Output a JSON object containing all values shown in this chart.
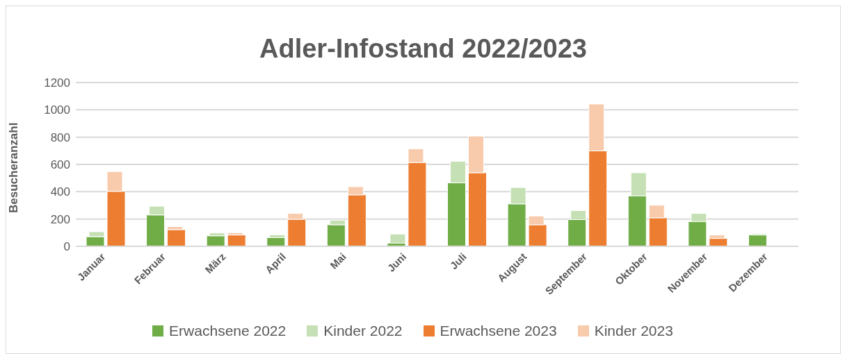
{
  "chart_data": {
    "type": "bar",
    "title": "Adler-Infostand 2022/2023",
    "ylabel": "Besucheranzahl",
    "categories": [
      "Januar",
      "Februar",
      "März",
      "April",
      "Mai",
      "Juni",
      "Juli",
      "August",
      "September",
      "Oktober",
      "November",
      "Dezember"
    ],
    "series": [
      {
        "name": "Erwachsene 2022",
        "color": "#70ad47",
        "values": [
          70,
          230,
          77,
          64,
          158,
          23,
          465,
          311,
          196,
          369,
          181,
          83
        ]
      },
      {
        "name": "Kinder 2022",
        "color": "#c5e0b4",
        "base": [
          70,
          230,
          77,
          64,
          158,
          23,
          465,
          311,
          196,
          369,
          181,
          83
        ],
        "values": [
          37,
          64,
          21,
          21,
          34,
          67,
          158,
          120,
          66,
          170,
          60,
          9
        ]
      },
      {
        "name": "Erwachsene 2023",
        "color": "#ed7d31",
        "values": [
          403,
          122,
          83,
          198,
          377,
          614,
          539,
          158,
          699,
          209,
          58,
          null
        ]
      },
      {
        "name": "Kinder 2023",
        "color": "#f8cbad",
        "base": [
          403,
          122,
          83,
          198,
          377,
          614,
          539,
          158,
          699,
          209,
          58,
          null
        ],
        "values": [
          145,
          23,
          17,
          43,
          60,
          100,
          269,
          64,
          344,
          92,
          25,
          null
        ]
      }
    ],
    "ylim": [
      0,
      1200
    ],
    "yticks": [
      0,
      200,
      400,
      600,
      800,
      1000,
      1200
    ],
    "grid": "y",
    "legend": "bottom"
  }
}
